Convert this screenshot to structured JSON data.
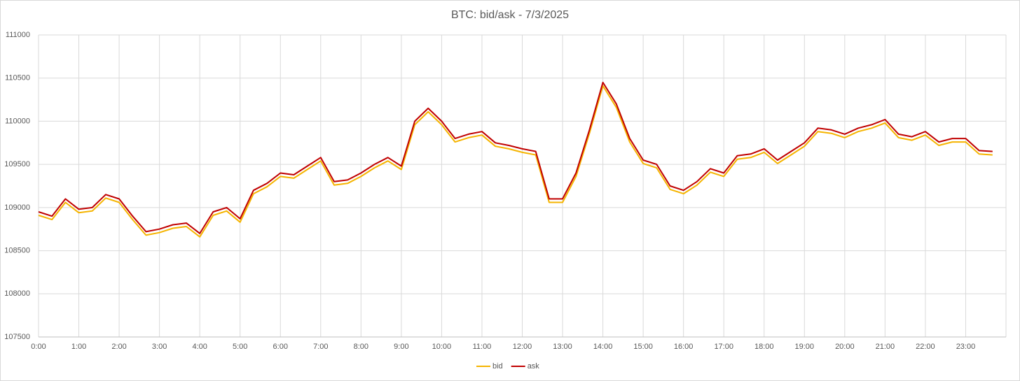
{
  "chart_data": {
    "type": "line",
    "title": "BTC: bid/ask - 7/3/2025",
    "x": [
      0,
      20,
      40,
      60,
      80,
      100,
      120,
      140,
      160,
      180,
      200,
      220,
      240,
      260,
      280,
      300,
      320,
      340,
      360,
      380,
      400,
      420,
      440,
      460,
      480,
      500,
      520,
      540,
      560,
      580,
      600,
      620,
      640,
      660,
      680,
      700,
      720,
      740,
      760,
      780,
      800,
      820,
      840,
      860,
      880,
      900,
      920,
      940,
      960,
      980,
      1000,
      1020,
      1040,
      1060,
      1080,
      1100,
      1120,
      1140,
      1160,
      1180,
      1200,
      1220,
      1240,
      1260,
      1280,
      1300,
      1320,
      1340,
      1360,
      1380,
      1400,
      1420
    ],
    "series": [
      {
        "name": "bid",
        "color": "#f5b400",
        "values": [
          108910,
          108860,
          109060,
          108940,
          108960,
          109110,
          109060,
          108860,
          108680,
          108710,
          108760,
          108780,
          108660,
          108910,
          108960,
          108830,
          109160,
          109240,
          109360,
          109340,
          109440,
          109540,
          109260,
          109280,
          109360,
          109460,
          109540,
          109440,
          109960,
          110110,
          109960,
          109760,
          109810,
          109840,
          109710,
          109680,
          109640,
          109610,
          109060,
          109060,
          109360,
          109860,
          110410,
          110160,
          109760,
          109510,
          109460,
          109210,
          109160,
          109260,
          109410,
          109360,
          109560,
          109580,
          109640,
          109510,
          109610,
          109710,
          109880,
          109860,
          109810,
          109880,
          109920,
          109980,
          109810,
          109780,
          109840,
          109720,
          109760,
          109760,
          109620,
          109610
        ]
      },
      {
        "name": "ask",
        "color": "#c00000",
        "values": [
          108950,
          108900,
          109100,
          108980,
          109000,
          109150,
          109100,
          108900,
          108720,
          108750,
          108800,
          108820,
          108700,
          108950,
          109000,
          108870,
          109200,
          109280,
          109400,
          109380,
          109480,
          109580,
          109300,
          109320,
          109400,
          109500,
          109580,
          109480,
          110000,
          110150,
          110000,
          109800,
          109850,
          109880,
          109750,
          109720,
          109680,
          109650,
          109100,
          109100,
          109400,
          109900,
          110450,
          110200,
          109800,
          109550,
          109500,
          109250,
          109200,
          109300,
          109450,
          109400,
          109600,
          109620,
          109680,
          109550,
          109650,
          109750,
          109920,
          109900,
          109850,
          109920,
          109960,
          110020,
          109850,
          109820,
          109880,
          109760,
          109800,
          109800,
          109660,
          109650
        ]
      }
    ],
    "xlim": [
      0,
      1440
    ],
    "xticks": [
      {
        "value": 0,
        "label": "0:00"
      },
      {
        "value": 60,
        "label": "1:00"
      },
      {
        "value": 120,
        "label": "2:00"
      },
      {
        "value": 180,
        "label": "3:00"
      },
      {
        "value": 240,
        "label": "4:00"
      },
      {
        "value": 300,
        "label": "5:00"
      },
      {
        "value": 360,
        "label": "6:00"
      },
      {
        "value": 420,
        "label": "7:00"
      },
      {
        "value": 480,
        "label": "8:00"
      },
      {
        "value": 540,
        "label": "9:00"
      },
      {
        "value": 600,
        "label": "10:00"
      },
      {
        "value": 660,
        "label": "11:00"
      },
      {
        "value": 720,
        "label": "12:00"
      },
      {
        "value": 780,
        "label": "13:00"
      },
      {
        "value": 840,
        "label": "14:00"
      },
      {
        "value": 900,
        "label": "15:00"
      },
      {
        "value": 960,
        "label": "16:00"
      },
      {
        "value": 1020,
        "label": "17:00"
      },
      {
        "value": 1080,
        "label": "18:00"
      },
      {
        "value": 1140,
        "label": "19:00"
      },
      {
        "value": 1200,
        "label": "20:00"
      },
      {
        "value": 1260,
        "label": "21:00"
      },
      {
        "value": 1320,
        "label": "22:00"
      },
      {
        "value": 1380,
        "label": "23:00"
      }
    ],
    "ylim": [
      107500,
      111000
    ],
    "yticks": [
      107500,
      108000,
      108500,
      109000,
      109500,
      110000,
      110500,
      111000
    ],
    "grid": true,
    "legend": "bottom"
  }
}
